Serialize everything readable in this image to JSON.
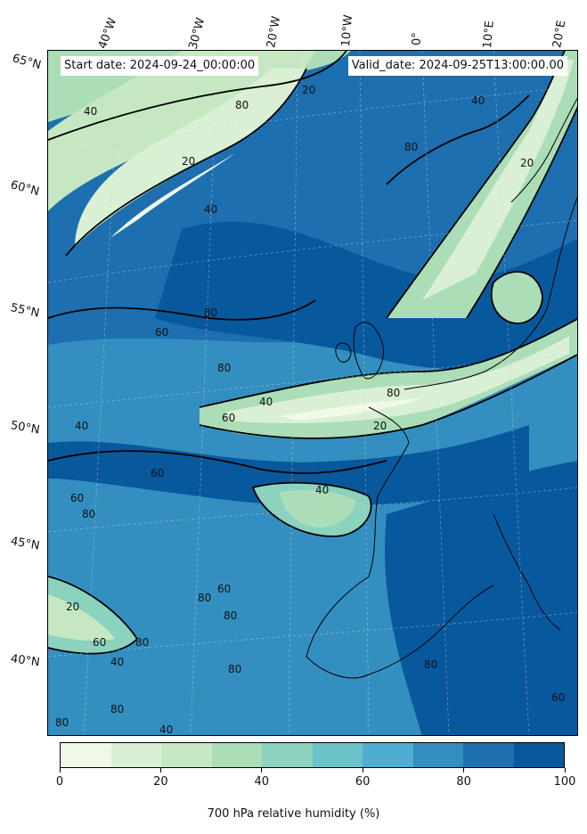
{
  "header": {
    "start_date": "Start date: 2024-09-24_00:00:00",
    "valid_date": "Valid_date: 2024-09-25T13:00:00.00"
  },
  "longitude_labels": [
    "40°W",
    "30°W",
    "20°W",
    "10°W",
    "0°",
    "10°E",
    "20°E"
  ],
  "latitude_labels": [
    "65°N",
    "60°N",
    "55°N",
    "50°N",
    "45°N",
    "40°N"
  ],
  "contour_labels": [
    "20",
    "40",
    "60",
    "80"
  ],
  "colorbar": {
    "title": "700 hPa relative humidity (%)",
    "ticks": [
      "0",
      "20",
      "40",
      "60",
      "80",
      "100"
    ],
    "colors": [
      "#f0f9e8",
      "#daf0d4",
      "#c5e8c2",
      "#abdeb7",
      "#8bd2bf",
      "#6bc3c9",
      "#4eadd0",
      "#348fc1",
      "#1d6fb0",
      "#08589e"
    ]
  },
  "colors": {
    "coastline": "#000000",
    "contour": "#000000",
    "dry": "#f0f9e8",
    "moist": "#08589e"
  }
}
